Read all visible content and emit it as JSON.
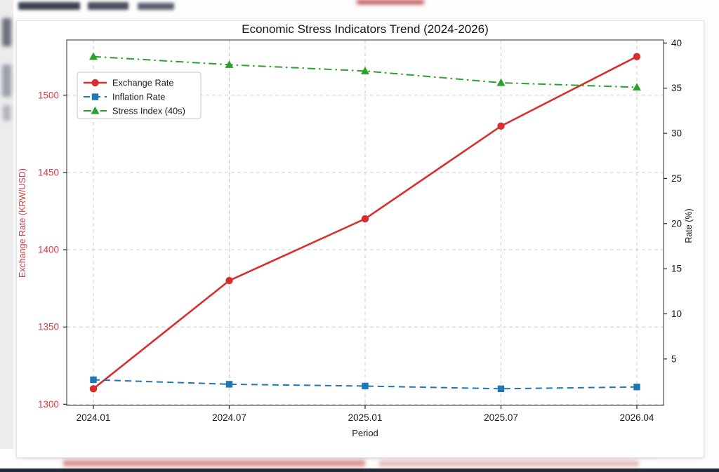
{
  "chart_data": {
    "type": "line",
    "title": "Economic Stress Indicators Trend (2024-2026)",
    "xlabel": "Period",
    "ylabel_left": "Exchange Rate (KRW/USD)",
    "ylabel_right": "Rate (%)",
    "categories": [
      "2024.01",
      "2024.07",
      "2025.01",
      "2025.07",
      "2026.04"
    ],
    "series": [
      {
        "name": "Exchange Rate",
        "axis": "left",
        "values": [
          1310,
          1380,
          1420,
          1480,
          1525
        ],
        "color": "#d62f2f",
        "marker": "circle",
        "dash": "solid",
        "width": 2.6
      },
      {
        "name": "Inflation Rate",
        "axis": "right",
        "values": [
          2.7,
          2.2,
          2.0,
          1.7,
          1.9
        ],
        "color": "#1f77b4",
        "marker": "square",
        "dash": "dashed",
        "width": 2
      },
      {
        "name": "Stress Index (40s)",
        "axis": "right",
        "values": [
          38.5,
          37.6,
          36.9,
          35.6,
          35.1
        ],
        "color": "#2ca02c",
        "marker": "triangle",
        "dash": "dashdot",
        "width": 2
      }
    ],
    "left_axis": {
      "ticks": [
        1300,
        1350,
        1400,
        1450,
        1500
      ],
      "range": [
        1299.25,
        1535.75
      ],
      "tick_color": "#d93b45"
    },
    "right_axis": {
      "ticks": [
        5,
        10,
        15,
        20,
        25,
        30,
        35,
        40
      ],
      "range": [
        -0.14,
        40.34
      ],
      "tick_color": "#1a1a1a"
    },
    "grid": true,
    "grid_color": "#cccccc",
    "spine_color": "#2b2b2b",
    "legend_position": "upper-left"
  }
}
